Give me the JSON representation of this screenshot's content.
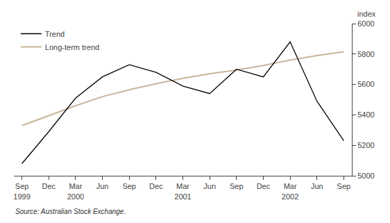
{
  "chart_data": {
    "type": "line",
    "categories": [
      "Sep\n1999",
      "Dec",
      "Mar\n2000",
      "Jun",
      "Sep",
      "Dec",
      "Mar\n2001",
      "Jun",
      "Sep",
      "Dec",
      "Mar\n2002",
      "Jun",
      "Sep"
    ],
    "series": [
      {
        "name": "Long-term trend",
        "color": "#c8b49a",
        "values": [
          5330,
          5395,
          5460,
          5520,
          5565,
          5605,
          5640,
          5670,
          5695,
          5725,
          5760,
          5790,
          5815
        ]
      },
      {
        "name": "Trend",
        "color": "#000000",
        "values": [
          5080,
          5290,
          5510,
          5650,
          5730,
          5680,
          5590,
          5540,
          5700,
          5650,
          5880,
          5490,
          5230
        ]
      }
    ],
    "ylabel": "index",
    "annotations": [
      "Source: Australian Stock Exchange."
    ],
    "ylim": [
      5000,
      6000
    ],
    "yticks": [
      5000,
      5200,
      5400,
      5600,
      5800,
      6000
    ],
    "grid": false,
    "legend": "upper left"
  }
}
